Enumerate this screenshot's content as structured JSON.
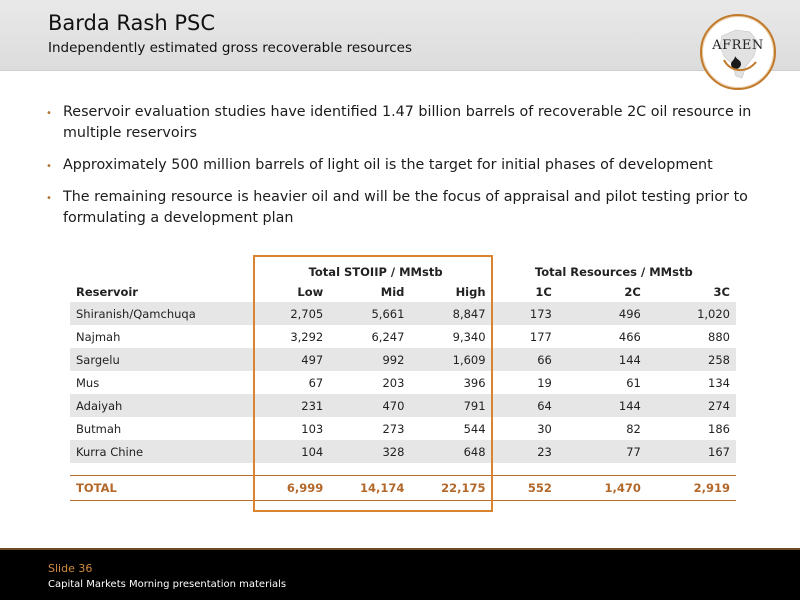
{
  "header": {
    "title": "Barda Rash PSC",
    "subtitle": "Independently estimated gross recoverable resources",
    "logo_text": "AFREN"
  },
  "bullets": [
    "Reservoir evaluation studies have identified 1.47 billion barrels of recoverable 2C oil resource in multiple reservoirs",
    "Approximately 500 million barrels of light oil is the target for initial phases of development",
    "The remaining resource is heavier oil and will be the focus of appraisal and pilot testing prior to formulating a development plan"
  ],
  "table": {
    "group_stoiip": "Total STOIIP / MMstb",
    "group_resources": "Total Resources / MMstb",
    "columns": [
      "Reservoir",
      "Low",
      "Mid",
      "High",
      "1C",
      "2C",
      "3C"
    ],
    "rows": [
      [
        "Shiranish/Qamchuqa",
        "2,705",
        "5,661",
        "8,847",
        "173",
        "496",
        "1,020"
      ],
      [
        "Najmah",
        "3,292",
        "6,247",
        "9,340",
        "177",
        "466",
        "880"
      ],
      [
        "Sargelu",
        "497",
        "992",
        "1,609",
        "66",
        "144",
        "258"
      ],
      [
        "Mus",
        "67",
        "203",
        "396",
        "19",
        "61",
        "134"
      ],
      [
        "Adaiyah",
        "231",
        "470",
        "791",
        "64",
        "144",
        "274"
      ],
      [
        "Butmah",
        "103",
        "273",
        "544",
        "30",
        "82",
        "186"
      ],
      [
        "Kurra Chine",
        "104",
        "328",
        "648",
        "23",
        "77",
        "167"
      ]
    ],
    "total": [
      "TOTAL",
      "6,999",
      "14,174",
      "22,175",
      "552",
      "1,470",
      "2,919"
    ]
  },
  "footer": {
    "slide_number": "Slide 36",
    "text": "Capital Markets Morning presentation materials"
  },
  "colors": {
    "accent": "#d9852f",
    "total_text": "#b3682a",
    "row_shade": "#e6e6e6",
    "footer_bg": "#000000"
  }
}
